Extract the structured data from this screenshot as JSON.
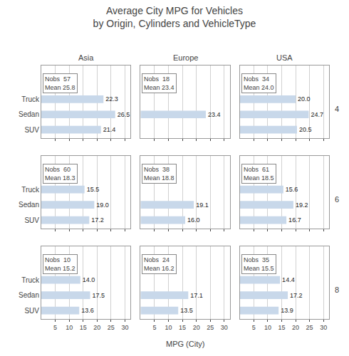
{
  "chart_data": {
    "type": "bar",
    "title": "Average City MPG for Vehicles\nby Origin, Cylinders and VehicleType",
    "xlabel": "MPG (City)",
    "orientation": "horizontal",
    "data_labels": true,
    "grid": true,
    "color": "#c8d8ea",
    "xlim": [
      0,
      32
    ],
    "xticks": [
      5,
      10,
      15,
      20,
      25,
      30
    ],
    "categories": [
      "SUV",
      "Sedan",
      "Truck"
    ],
    "columns": [
      "Asia",
      "Europe",
      "USA"
    ],
    "rows": [
      4,
      6,
      8
    ],
    "panels": [
      {
        "column": "Asia",
        "row": 4,
        "values": [
          21.4,
          26.5,
          22.3
        ],
        "value_labels": [
          "21.4",
          "26.5",
          "22.3"
        ],
        "annotations": [
          "Nobs  57",
          "Mean 25.8"
        ]
      },
      {
        "column": "Europe",
        "row": 4,
        "values": [
          null,
          23.4,
          null
        ],
        "value_labels": [
          null,
          "23.4",
          null
        ],
        "annotations": [
          "Nobs  18",
          "Mean 23.4"
        ]
      },
      {
        "column": "USA",
        "row": 4,
        "values": [
          20.5,
          24.7,
          20.0
        ],
        "value_labels": [
          "20.5",
          "24.7",
          "20.0"
        ],
        "annotations": [
          "Nobs  34",
          "Mean 24.0"
        ]
      },
      {
        "column": "Asia",
        "row": 6,
        "values": [
          17.2,
          19.0,
          15.5
        ],
        "value_labels": [
          "17.2",
          "19.0",
          "15.5"
        ],
        "annotations": [
          "Nobs  60",
          "Mean 18.3"
        ]
      },
      {
        "column": "Europe",
        "row": 6,
        "values": [
          16.0,
          19.1,
          null
        ],
        "value_labels": [
          "16.0",
          "19.1",
          null
        ],
        "annotations": [
          "Nobs  38",
          "Mean 18.8"
        ]
      },
      {
        "column": "USA",
        "row": 6,
        "values": [
          16.7,
          19.2,
          15.6
        ],
        "value_labels": [
          "16.7",
          "19.2",
          "15.6"
        ],
        "annotations": [
          "Nobs  61",
          "Mean 18.5"
        ]
      },
      {
        "column": "Asia",
        "row": 8,
        "values": [
          13.6,
          17.5,
          14.0
        ],
        "value_labels": [
          "13.6",
          "17.5",
          "14.0"
        ],
        "annotations": [
          "Nobs  10",
          "Mean 15.2"
        ]
      },
      {
        "column": "Europe",
        "row": 8,
        "values": [
          13.5,
          17.1,
          null
        ],
        "value_labels": [
          "13.5",
          "17.1",
          null
        ],
        "annotations": [
          "Nobs  24",
          "Mean 16.2"
        ]
      },
      {
        "column": "USA",
        "row": 8,
        "values": [
          13.9,
          17.2,
          14.4
        ],
        "value_labels": [
          "13.9",
          "17.2",
          "14.4"
        ],
        "annotations": [
          "Nobs  35",
          "Mean 15.5"
        ]
      }
    ]
  }
}
